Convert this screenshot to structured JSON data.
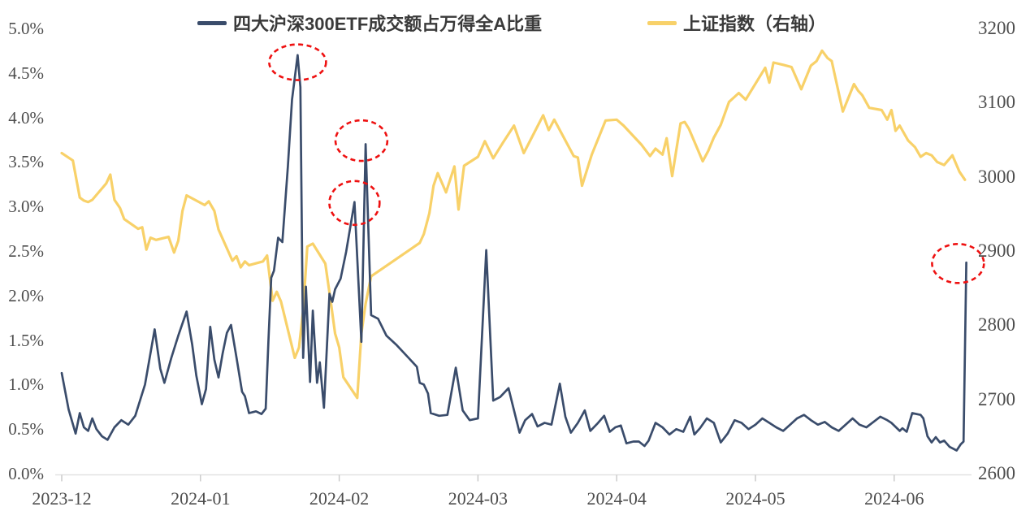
{
  "chart_data": {
    "type": "line",
    "title": "",
    "background": "#FFFFFF",
    "grid": "off",
    "legend_position": "top-center",
    "x_axis": {
      "tick_labels": [
        "2023-12",
        "2024-01",
        "2024-02",
        "2024-03",
        "2024-04",
        "2024-05",
        "2024-06"
      ],
      "tick_positions_months": [
        0,
        1,
        2,
        3,
        4,
        5,
        6
      ],
      "range_months": [
        0,
        6.56
      ]
    },
    "y_left": {
      "tick_labels": [
        "5.0%",
        "4.5%",
        "4.0%",
        "3.5%",
        "3.0%",
        "2.5%",
        "2.0%",
        "1.5%",
        "1.0%",
        "0.5%",
        "0.0%"
      ],
      "min": 0.0,
      "max": 5.0,
      "unit": "%"
    },
    "y_right": {
      "tick_labels": [
        "3200",
        "3100",
        "3000",
        "2900",
        "2800",
        "2700",
        "2600"
      ],
      "min": 2600,
      "max": 3200
    },
    "series": [
      {
        "name": "四大沪深300ETF成交额占万得全A比重",
        "color": "#3A4C6B",
        "axis": "left",
        "points": [
          [
            0.0,
            1.13
          ],
          [
            0.05,
            0.72
          ],
          [
            0.1,
            0.45
          ],
          [
            0.13,
            0.68
          ],
          [
            0.16,
            0.52
          ],
          [
            0.19,
            0.48
          ],
          [
            0.22,
            0.62
          ],
          [
            0.25,
            0.5
          ],
          [
            0.29,
            0.42
          ],
          [
            0.33,
            0.38
          ],
          [
            0.38,
            0.52
          ],
          [
            0.43,
            0.6
          ],
          [
            0.48,
            0.55
          ],
          [
            0.53,
            0.65
          ],
          [
            0.6,
            1.0
          ],
          [
            0.67,
            1.62
          ],
          [
            0.71,
            1.18
          ],
          [
            0.74,
            1.02
          ],
          [
            0.79,
            1.3
          ],
          [
            0.84,
            1.55
          ],
          [
            0.9,
            1.82
          ],
          [
            0.94,
            1.45
          ],
          [
            0.97,
            1.1
          ],
          [
            1.01,
            0.78
          ],
          [
            1.04,
            0.95
          ],
          [
            1.07,
            1.65
          ],
          [
            1.1,
            1.28
          ],
          [
            1.13,
            1.08
          ],
          [
            1.16,
            1.35
          ],
          [
            1.19,
            1.58
          ],
          [
            1.22,
            1.67
          ],
          [
            1.26,
            1.3
          ],
          [
            1.3,
            0.92
          ],
          [
            1.32,
            0.87
          ],
          [
            1.35,
            0.68
          ],
          [
            1.4,
            0.7
          ],
          [
            1.44,
            0.67
          ],
          [
            1.47,
            0.73
          ],
          [
            1.49,
            1.5
          ],
          [
            1.51,
            2.2
          ],
          [
            1.53,
            2.28
          ],
          [
            1.56,
            2.65
          ],
          [
            1.59,
            2.6
          ],
          [
            1.63,
            3.45
          ],
          [
            1.66,
            4.2
          ],
          [
            1.7,
            4.7
          ],
          [
            1.72,
            4.34
          ],
          [
            1.74,
            1.3
          ],
          [
            1.76,
            2.1
          ],
          [
            1.79,
            1.03
          ],
          [
            1.81,
            1.83
          ],
          [
            1.84,
            1.02
          ],
          [
            1.86,
            1.25
          ],
          [
            1.89,
            0.74
          ],
          [
            1.93,
            2.02
          ],
          [
            1.95,
            1.93
          ],
          [
            1.97,
            2.07
          ],
          [
            2.01,
            2.19
          ],
          [
            2.05,
            2.49
          ],
          [
            2.11,
            3.05
          ],
          [
            2.16,
            1.48
          ],
          [
            2.19,
            3.7
          ],
          [
            2.23,
            1.78
          ],
          [
            2.28,
            1.74
          ],
          [
            2.34,
            1.55
          ],
          [
            2.41,
            1.45
          ],
          [
            2.5,
            1.3
          ],
          [
            2.56,
            1.2
          ],
          [
            2.58,
            1.02
          ],
          [
            2.61,
            1.0
          ],
          [
            2.64,
            0.9
          ],
          [
            2.66,
            0.68
          ],
          [
            2.72,
            0.65
          ],
          [
            2.78,
            0.66
          ],
          [
            2.84,
            1.19
          ],
          [
            2.89,
            0.71
          ],
          [
            2.94,
            0.6
          ],
          [
            3.0,
            0.62
          ],
          [
            3.06,
            2.51
          ],
          [
            3.11,
            0.82
          ],
          [
            3.16,
            0.86
          ],
          [
            3.22,
            0.96
          ],
          [
            3.3,
            0.46
          ],
          [
            3.34,
            0.6
          ],
          [
            3.39,
            0.67
          ],
          [
            3.43,
            0.53
          ],
          [
            3.48,
            0.57
          ],
          [
            3.53,
            0.55
          ],
          [
            3.59,
            1.01
          ],
          [
            3.63,
            0.64
          ],
          [
            3.67,
            0.46
          ],
          [
            3.72,
            0.57
          ],
          [
            3.77,
            0.71
          ],
          [
            3.81,
            0.48
          ],
          [
            3.86,
            0.56
          ],
          [
            3.91,
            0.65
          ],
          [
            3.95,
            0.47
          ],
          [
            3.99,
            0.52
          ],
          [
            4.03,
            0.54
          ],
          [
            4.07,
            0.34
          ],
          [
            4.12,
            0.36
          ],
          [
            4.16,
            0.36
          ],
          [
            4.2,
            0.31
          ],
          [
            4.23,
            0.37
          ],
          [
            4.28,
            0.57
          ],
          [
            4.33,
            0.52
          ],
          [
            4.38,
            0.44
          ],
          [
            4.43,
            0.5
          ],
          [
            4.48,
            0.47
          ],
          [
            4.53,
            0.64
          ],
          [
            4.56,
            0.44
          ],
          [
            4.6,
            0.51
          ],
          [
            4.65,
            0.62
          ],
          [
            4.7,
            0.57
          ],
          [
            4.75,
            0.35
          ],
          [
            4.8,
            0.45
          ],
          [
            4.85,
            0.6
          ],
          [
            4.9,
            0.57
          ],
          [
            4.95,
            0.5
          ],
          [
            5.0,
            0.55
          ],
          [
            5.05,
            0.62
          ],
          [
            5.1,
            0.57
          ],
          [
            5.15,
            0.52
          ],
          [
            5.2,
            0.48
          ],
          [
            5.25,
            0.55
          ],
          [
            5.3,
            0.62
          ],
          [
            5.35,
            0.66
          ],
          [
            5.4,
            0.6
          ],
          [
            5.45,
            0.55
          ],
          [
            5.5,
            0.58
          ],
          [
            5.55,
            0.52
          ],
          [
            5.6,
            0.48
          ],
          [
            5.65,
            0.55
          ],
          [
            5.7,
            0.62
          ],
          [
            5.75,
            0.55
          ],
          [
            5.8,
            0.52
          ],
          [
            5.85,
            0.58
          ],
          [
            5.9,
            0.64
          ],
          [
            5.95,
            0.6
          ],
          [
            5.98,
            0.57
          ],
          [
            6.04,
            0.48
          ],
          [
            6.06,
            0.51
          ],
          [
            6.09,
            0.47
          ],
          [
            6.13,
            0.68
          ],
          [
            6.19,
            0.66
          ],
          [
            6.21,
            0.62
          ],
          [
            6.24,
            0.42
          ],
          [
            6.27,
            0.35
          ],
          [
            6.3,
            0.41
          ],
          [
            6.33,
            0.35
          ],
          [
            6.36,
            0.37
          ],
          [
            6.4,
            0.3
          ],
          [
            6.45,
            0.26
          ],
          [
            6.48,
            0.33
          ],
          [
            6.5,
            0.36
          ],
          [
            6.52,
            2.37
          ]
        ]
      },
      {
        "name": "上证指数（右轴）",
        "color": "#F8D169",
        "axis": "right",
        "points": [
          [
            0.0,
            3032
          ],
          [
            0.08,
            3022
          ],
          [
            0.13,
            2972
          ],
          [
            0.16,
            2968
          ],
          [
            0.19,
            2966
          ],
          [
            0.22,
            2969
          ],
          [
            0.32,
            2991
          ],
          [
            0.35,
            3003
          ],
          [
            0.38,
            2969
          ],
          [
            0.42,
            2958
          ],
          [
            0.45,
            2943
          ],
          [
            0.55,
            2930
          ],
          [
            0.58,
            2932
          ],
          [
            0.61,
            2902
          ],
          [
            0.64,
            2918
          ],
          [
            0.68,
            2915
          ],
          [
            0.77,
            2919
          ],
          [
            0.81,
            2898
          ],
          [
            0.84,
            2914
          ],
          [
            0.87,
            2954
          ],
          [
            0.9,
            2975
          ],
          [
            1.03,
            2962
          ],
          [
            1.06,
            2967
          ],
          [
            1.1,
            2954
          ],
          [
            1.13,
            2929
          ],
          [
            1.23,
            2887
          ],
          [
            1.26,
            2893
          ],
          [
            1.29,
            2878
          ],
          [
            1.32,
            2886
          ],
          [
            1.35,
            2881
          ],
          [
            1.45,
            2886
          ],
          [
            1.48,
            2894
          ],
          [
            1.52,
            2833
          ],
          [
            1.55,
            2845
          ],
          [
            1.58,
            2832
          ],
          [
            1.68,
            2756
          ],
          [
            1.71,
            2770
          ],
          [
            1.74,
            2820
          ],
          [
            1.77,
            2906
          ],
          [
            1.81,
            2910
          ],
          [
            1.9,
            2883
          ],
          [
            1.94,
            2830
          ],
          [
            1.97,
            2789
          ],
          [
            2.0,
            2770
          ],
          [
            2.03,
            2730
          ],
          [
            2.13,
            2702
          ],
          [
            2.16,
            2789
          ],
          [
            2.19,
            2829
          ],
          [
            2.23,
            2866
          ],
          [
            2.58,
            2911
          ],
          [
            2.61,
            2923
          ],
          [
            2.65,
            2951
          ],
          [
            2.68,
            2988
          ],
          [
            2.71,
            3005
          ],
          [
            2.77,
            2979
          ],
          [
            2.83,
            3014
          ],
          [
            2.86,
            2956
          ],
          [
            2.9,
            3015
          ],
          [
            3.0,
            3027
          ],
          [
            3.05,
            3048
          ],
          [
            3.11,
            3025
          ],
          [
            3.18,
            3046
          ],
          [
            3.26,
            3069
          ],
          [
            3.33,
            3032
          ],
          [
            3.47,
            3083
          ],
          [
            3.51,
            3063
          ],
          [
            3.55,
            3077
          ],
          [
            3.69,
            3028
          ],
          [
            3.72,
            3026
          ],
          [
            3.75,
            2988
          ],
          [
            3.82,
            3030
          ],
          [
            3.92,
            3076
          ],
          [
            4.0,
            3077
          ],
          [
            4.05,
            3069
          ],
          [
            4.18,
            3043
          ],
          [
            4.24,
            3028
          ],
          [
            4.28,
            3038
          ],
          [
            4.33,
            3030
          ],
          [
            4.36,
            3052
          ],
          [
            4.4,
            3001
          ],
          [
            4.46,
            3072
          ],
          [
            4.49,
            3074
          ],
          [
            4.52,
            3065
          ],
          [
            4.62,
            3021
          ],
          [
            4.66,
            3035
          ],
          [
            4.7,
            3053
          ],
          [
            4.75,
            3070
          ],
          [
            4.81,
            3101
          ],
          [
            4.88,
            3113
          ],
          [
            4.93,
            3104
          ],
          [
            5.07,
            3147
          ],
          [
            5.1,
            3127
          ],
          [
            5.13,
            3154
          ],
          [
            5.2,
            3151
          ],
          [
            5.26,
            3148
          ],
          [
            5.33,
            3118
          ],
          [
            5.4,
            3150
          ],
          [
            5.44,
            3156
          ],
          [
            5.48,
            3170
          ],
          [
            5.52,
            3160
          ],
          [
            5.55,
            3156
          ],
          [
            5.63,
            3088
          ],
          [
            5.71,
            3125
          ],
          [
            5.74,
            3116
          ],
          [
            5.77,
            3110
          ],
          [
            5.82,
            3093
          ],
          [
            5.91,
            3090
          ],
          [
            5.95,
            3077
          ],
          [
            5.98,
            3090
          ],
          [
            6.01,
            3062
          ],
          [
            6.04,
            3069
          ],
          [
            6.1,
            3049
          ],
          [
            6.15,
            3040
          ],
          [
            6.19,
            3027
          ],
          [
            6.23,
            3032
          ],
          [
            6.27,
            3029
          ],
          [
            6.31,
            3020
          ],
          [
            6.36,
            3016
          ],
          [
            6.42,
            3029
          ],
          [
            6.47,
            3007
          ],
          [
            6.51,
            2996
          ]
        ]
      }
    ],
    "annotations": {
      "shape": "ellipse",
      "style": "dashed",
      "color": "#EE1111",
      "ellipses": [
        {
          "x": 1.7,
          "y": 4.62,
          "rx": 0.205,
          "ry": 0.2
        },
        {
          "x": 2.16,
          "y": 3.74,
          "rx": 0.187,
          "ry": 0.228
        },
        {
          "x": 2.11,
          "y": 3.04,
          "rx": 0.181,
          "ry": 0.246
        },
        {
          "x": 6.46,
          "y": 2.36,
          "rx": 0.187,
          "ry": 0.219
        }
      ]
    }
  }
}
